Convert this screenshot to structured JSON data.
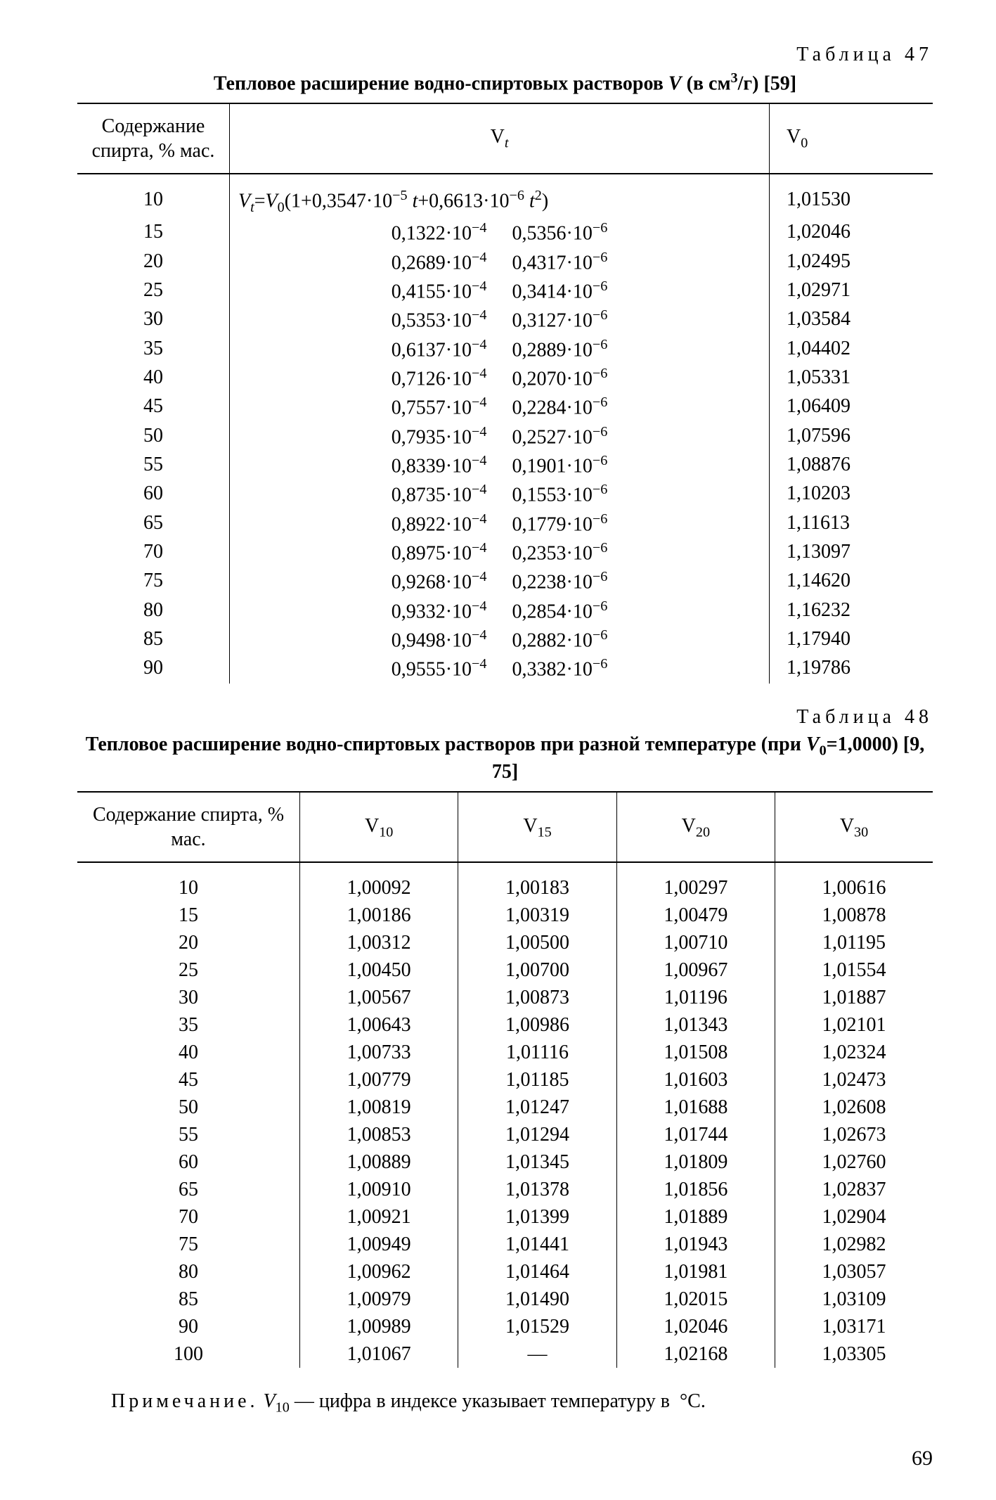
{
  "page_number": "69",
  "table47": {
    "number_label": "Таблица 47",
    "caption_html": "Тепловое расширение водно-спиртовых растворов <i>V</i> (в см<span class=\"sup\">3</span>/г) [59]",
    "col1_header": "Содержание спирта, % мас.",
    "col2_header_html": "V<span class=\"sub\"><i>t</i></span>",
    "col3_header_html": "V<span class=\"sub\">0</span>",
    "formula_html": "<i>V</i><span class=\"sub\"><i>t</i></span>=<i>V</i><span class=\"sub\">0</span>(1+0,3547·10<span class=\"sup\">−5</span> <i>t</i>+0,6613·10<span class=\"sup\">−6</span> <i>t</i><span class=\"sup\">2</span>)",
    "rows": [
      {
        "p": "10",
        "a_html": "",
        "b_html": "",
        "v0": "1,01530",
        "is_formula": true
      },
      {
        "p": "15",
        "a_html": "0,1322·10<span class=\"sup\">−4</span>",
        "b_html": "0,5356·10<span class=\"sup\">−6</span>",
        "v0": "1,02046"
      },
      {
        "p": "20",
        "a_html": "0,2689·10<span class=\"sup\">−4</span>",
        "b_html": "0,4317·10<span class=\"sup\">−6</span>",
        "v0": "1,02495"
      },
      {
        "p": "25",
        "a_html": "0,4155·10<span class=\"sup\">−4</span>",
        "b_html": "0,3414·10<span class=\"sup\">−6</span>",
        "v0": "1,02971"
      },
      {
        "p": "30",
        "a_html": "0,5353·10<span class=\"sup\">−4</span>",
        "b_html": "0,3127·10<span class=\"sup\">−6</span>",
        "v0": "1,03584"
      },
      {
        "p": "35",
        "a_html": "0,6137·10<span class=\"sup\">−4</span>",
        "b_html": "0,2889·10<span class=\"sup\">−6</span>",
        "v0": "1,04402"
      },
      {
        "p": "40",
        "a_html": "0,7126·10<span class=\"sup\">−4</span>",
        "b_html": "0,2070·10<span class=\"sup\">−6</span>",
        "v0": "1,05331"
      },
      {
        "p": "45",
        "a_html": "0,7557·10<span class=\"sup\">−4</span>",
        "b_html": "0,2284·10<span class=\"sup\">−6</span>",
        "v0": "1,06409"
      },
      {
        "p": "50",
        "a_html": "0,7935·10<span class=\"sup\">−4</span>",
        "b_html": "0,2527·10<span class=\"sup\">−6</span>",
        "v0": "1,07596"
      },
      {
        "p": "55",
        "a_html": "0,8339·10<span class=\"sup\">−4</span>",
        "b_html": "0,1901·10<span class=\"sup\">−6</span>",
        "v0": "1,08876"
      },
      {
        "p": "60",
        "a_html": "0,8735·10<span class=\"sup\">−4</span>",
        "b_html": "0,1553·10<span class=\"sup\">−6</span>",
        "v0": "1,10203"
      },
      {
        "p": "65",
        "a_html": "0,8922·10<span class=\"sup\">−4</span>",
        "b_html": "0,1779·10<span class=\"sup\">−6</span>",
        "v0": "1,11613"
      },
      {
        "p": "70",
        "a_html": "0,8975·10<span class=\"sup\">−4</span>",
        "b_html": "0,2353·10<span class=\"sup\">−6</span>",
        "v0": "1,13097"
      },
      {
        "p": "75",
        "a_html": "0,9268·10<span class=\"sup\">−4</span>",
        "b_html": "0,2238·10<span class=\"sup\">−6</span>",
        "v0": "1,14620"
      },
      {
        "p": "80",
        "a_html": "0,9332·10<span class=\"sup\">−4</span>",
        "b_html": "0,2854·10<span class=\"sup\">−6</span>",
        "v0": "1,16232"
      },
      {
        "p": "85",
        "a_html": "0,9498·10<span class=\"sup\">−4</span>",
        "b_html": "0,2882·10<span class=\"sup\">−6</span>",
        "v0": "1,17940"
      },
      {
        "p": "90",
        "a_html": "0,9555·10<span class=\"sup\">−4</span>",
        "b_html": "0,3382·10<span class=\"sup\">−6</span>",
        "v0": "1,19786"
      }
    ]
  },
  "table48": {
    "number_label": "Таблица 48",
    "caption_html": "Тепловое расширение водно-спиртовых растворов при разной температуре (при <i>V</i><span class=\"sub\">0</span>=1,0000) [9, 75]",
    "col1_header": "Содержание спирта, % мас.",
    "col_headers_html": [
      "V<span class=\"sub\">10</span>",
      "V<span class=\"sub\">15</span>",
      "V<span class=\"sub\">20</span>",
      "V<span class=\"sub\">30</span>"
    ],
    "rows": [
      {
        "p": "10",
        "v": [
          "1,00092",
          "1,00183",
          "1,00297",
          "1,00616"
        ]
      },
      {
        "p": "15",
        "v": [
          "1,00186",
          "1,00319",
          "1,00479",
          "1,00878"
        ]
      },
      {
        "p": "20",
        "v": [
          "1,00312",
          "1,00500",
          "1,00710",
          "1,01195"
        ]
      },
      {
        "p": "25",
        "v": [
          "1,00450",
          "1,00700",
          "1,00967",
          "1,01554"
        ]
      },
      {
        "p": "30",
        "v": [
          "1,00567",
          "1,00873",
          "1,01196",
          "1,01887"
        ]
      },
      {
        "p": "35",
        "v": [
          "1,00643",
          "1,00986",
          "1,01343",
          "1,02101"
        ]
      },
      {
        "p": "40",
        "v": [
          "1,00733",
          "1,01116",
          "1,01508",
          "1,02324"
        ]
      },
      {
        "p": "45",
        "v": [
          "1,00779",
          "1,01185",
          "1,01603",
          "1,02473"
        ]
      },
      {
        "p": "50",
        "v": [
          "1,00819",
          "1,01247",
          "1,01688",
          "1,02608"
        ]
      },
      {
        "p": "55",
        "v": [
          "1,00853",
          "1,01294",
          "1,01744",
          "1,02673"
        ]
      },
      {
        "p": "60",
        "v": [
          "1,00889",
          "1,01345",
          "1,01809",
          "1,02760"
        ]
      },
      {
        "p": "65",
        "v": [
          "1,00910",
          "1,01378",
          "1,01856",
          "1,02837"
        ]
      },
      {
        "p": "70",
        "v": [
          "1,00921",
          "1,01399",
          "1,01889",
          "1,02904"
        ]
      },
      {
        "p": "75",
        "v": [
          "1,00949",
          "1,01441",
          "1,01943",
          "1,02982"
        ]
      },
      {
        "p": "80",
        "v": [
          "1,00962",
          "1,01464",
          "1,01981",
          "1,03057"
        ]
      },
      {
        "p": "85",
        "v": [
          "1,00979",
          "1,01490",
          "1,02015",
          "1,03109"
        ]
      },
      {
        "p": "90",
        "v": [
          "1,00989",
          "1,01529",
          "1,02046",
          "1,03171"
        ]
      },
      {
        "p": "100",
        "v": [
          "1,01067",
          "—",
          "1,02168",
          "1,03305"
        ]
      }
    ]
  },
  "note_html": "<span class=\"sp\">Примечание.</span> <i>V</i><span class=\"sub\">10</span> — цифра в индексе указывает температуру в&nbsp;&nbsp;°C."
}
